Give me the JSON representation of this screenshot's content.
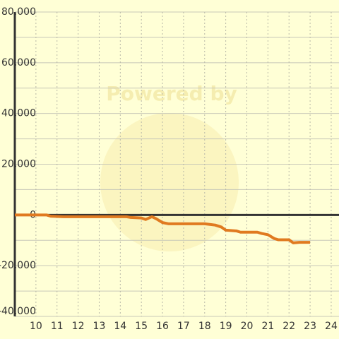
{
  "chart_data": {
    "type": "line",
    "watermark": "Powered by",
    "x": [
      9,
      10.5,
      10.7,
      11.3,
      14.3,
      14.5,
      15,
      15.2,
      15.5,
      15.7,
      16,
      16.3,
      18,
      18.5,
      18.8,
      19,
      19.5,
      19.7,
      20.5,
      20.7,
      21,
      21.3,
      21.5,
      22,
      22.2,
      22.5,
      23
    ],
    "series": [
      {
        "color": "#e07a20",
        "values": [
          0,
          0,
          -500,
          -700,
          -700,
          -1000,
          -1200,
          -1800,
          -700,
          -1500,
          -3000,
          -3500,
          -3500,
          -4000,
          -4800,
          -6000,
          -6300,
          -6800,
          -6800,
          -7300,
          -7800,
          -9300,
          -9800,
          -9800,
          -11000,
          -10800,
          -10800
        ]
      }
    ],
    "xlim": [
      9,
      24.37
    ],
    "xticks": [
      10,
      11,
      12,
      13,
      14,
      15,
      16,
      17,
      18,
      19,
      20,
      21,
      22,
      23,
      24
    ],
    "ylim": [
      -40000,
      80000
    ],
    "yticks": [
      {
        "value": -40000,
        "label": "-40,000"
      },
      {
        "value": -20000,
        "label": "-20,000"
      },
      {
        "value": 0,
        "label": "0"
      },
      {
        "value": 20000,
        "label": "20,000"
      },
      {
        "value": 40000,
        "label": "40,000"
      },
      {
        "value": 60000,
        "label": "60,000"
      },
      {
        "value": 80000,
        "label": "80,000"
      }
    ],
    "yminor": [
      -30000,
      -10000,
      10000,
      30000,
      50000,
      70000
    ],
    "grid": true
  }
}
